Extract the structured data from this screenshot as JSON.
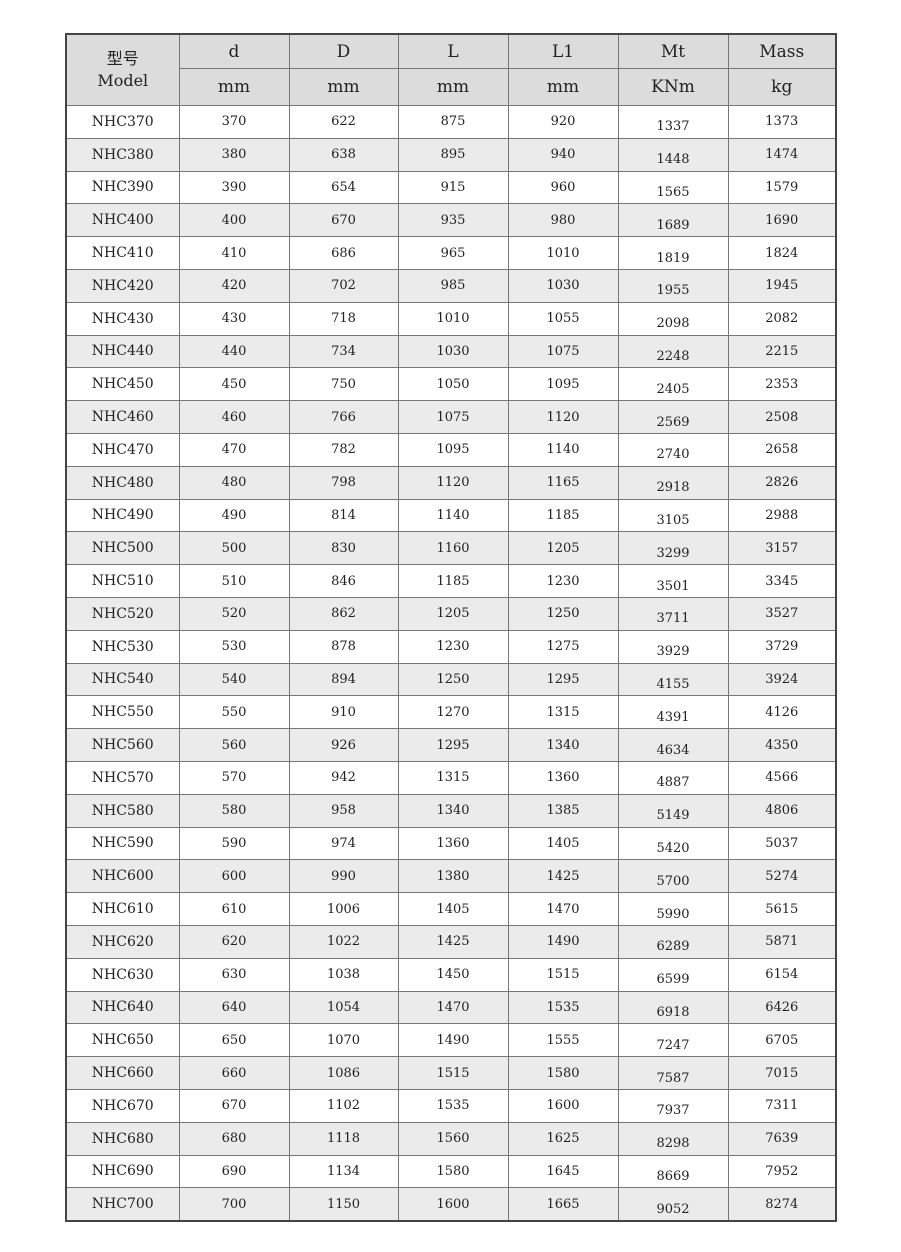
{
  "header": {
    "model_cn": "型号",
    "model_en": "Model",
    "columns": [
      {
        "name": "d",
        "unit": "mm"
      },
      {
        "name": "D",
        "unit": "mm"
      },
      {
        "name": "L",
        "unit": "mm"
      },
      {
        "name": "L1",
        "unit": "mm"
      },
      {
        "name": "Mt",
        "unit": "KNm"
      },
      {
        "name": "Mass",
        "unit": "kg"
      }
    ]
  },
  "rows": [
    [
      "NHC370",
      "370",
      "622",
      "875",
      "920",
      "1337",
      "1373"
    ],
    [
      "NHC380",
      "380",
      "638",
      "895",
      "940",
      "1448",
      "1474"
    ],
    [
      "NHC390",
      "390",
      "654",
      "915",
      "960",
      "1565",
      "1579"
    ],
    [
      "NHC400",
      "400",
      "670",
      "935",
      "980",
      "1689",
      "1690"
    ],
    [
      "NHC410",
      "410",
      "686",
      "965",
      "1010",
      "1819",
      "1824"
    ],
    [
      "NHC420",
      "420",
      "702",
      "985",
      "1030",
      "1955",
      "1945"
    ],
    [
      "NHC430",
      "430",
      "718",
      "1010",
      "1055",
      "2098",
      "2082"
    ],
    [
      "NHC440",
      "440",
      "734",
      "1030",
      "1075",
      "2248",
      "2215"
    ],
    [
      "NHC450",
      "450",
      "750",
      "1050",
      "1095",
      "2405",
      "2353"
    ],
    [
      "NHC460",
      "460",
      "766",
      "1075",
      "1120",
      "2569",
      "2508"
    ],
    [
      "NHC470",
      "470",
      "782",
      "1095",
      "1140",
      "2740",
      "2658"
    ],
    [
      "NHC480",
      "480",
      "798",
      "1120",
      "1165",
      "2918",
      "2826"
    ],
    [
      "NHC490",
      "490",
      "814",
      "1140",
      "1185",
      "3105",
      "2988"
    ],
    [
      "NHC500",
      "500",
      "830",
      "1160",
      "1205",
      "3299",
      "3157"
    ],
    [
      "NHC510",
      "510",
      "846",
      "1185",
      "1230",
      "3501",
      "3345"
    ],
    [
      "NHC520",
      "520",
      "862",
      "1205",
      "1250",
      "3711",
      "3527"
    ],
    [
      "NHC530",
      "530",
      "878",
      "1230",
      "1275",
      "3929",
      "3729"
    ],
    [
      "NHC540",
      "540",
      "894",
      "1250",
      "1295",
      "4155",
      "3924"
    ],
    [
      "NHC550",
      "550",
      "910",
      "1270",
      "1315",
      "4391",
      "4126"
    ],
    [
      "NHC560",
      "560",
      "926",
      "1295",
      "1340",
      "4634",
      "4350"
    ],
    [
      "NHC570",
      "570",
      "942",
      "1315",
      "1360",
      "4887",
      "4566"
    ],
    [
      "NHC580",
      "580",
      "958",
      "1340",
      "1385",
      "5149",
      "4806"
    ],
    [
      "NHC590",
      "590",
      "974",
      "1360",
      "1405",
      "5420",
      "5037"
    ],
    [
      "NHC600",
      "600",
      "990",
      "1380",
      "1425",
      "5700",
      "5274"
    ],
    [
      "NHC610",
      "610",
      "1006",
      "1405",
      "1470",
      "5990",
      "5615"
    ],
    [
      "NHC620",
      "620",
      "1022",
      "1425",
      "1490",
      "6289",
      "5871"
    ],
    [
      "NHC630",
      "630",
      "1038",
      "1450",
      "1515",
      "6599",
      "6154"
    ],
    [
      "NHC640",
      "640",
      "1054",
      "1470",
      "1535",
      "6918",
      "6426"
    ],
    [
      "NHC650",
      "650",
      "1070",
      "1490",
      "1555",
      "7247",
      "6705"
    ],
    [
      "NHC660",
      "660",
      "1086",
      "1515",
      "1580",
      "7587",
      "7015"
    ],
    [
      "NHC670",
      "670",
      "1102",
      "1535",
      "1600",
      "7937",
      "7311"
    ],
    [
      "NHC680",
      "680",
      "1118",
      "1560",
      "1625",
      "8298",
      "7639"
    ],
    [
      "NHC690",
      "690",
      "1134",
      "1580",
      "1645",
      "8669",
      "7952"
    ],
    [
      "NHC700",
      "700",
      "1150",
      "1600",
      "1665",
      "9052",
      "8274"
    ]
  ]
}
